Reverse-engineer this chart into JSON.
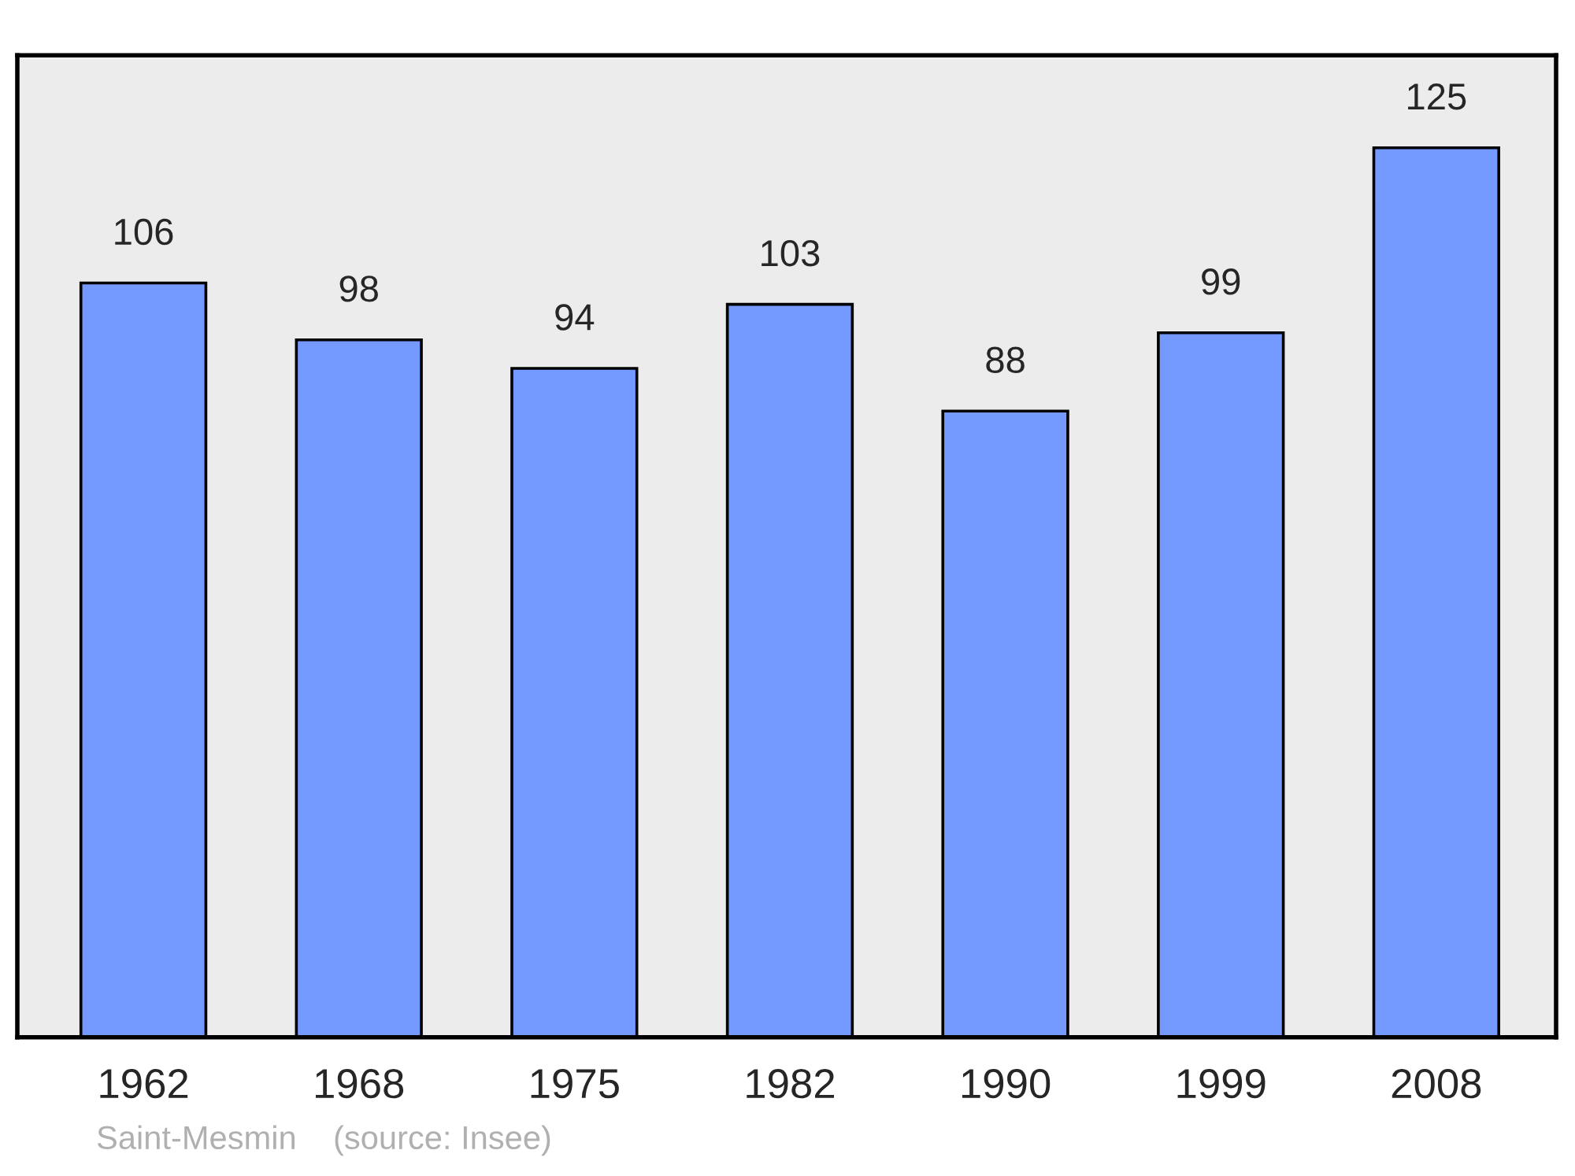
{
  "chart_data": {
    "type": "bar",
    "categories": [
      "1962",
      "1968",
      "1975",
      "1982",
      "1990",
      "1999",
      "2008"
    ],
    "values": [
      106,
      98,
      94,
      103,
      88,
      99,
      125
    ],
    "color": "#7499ff",
    "ylim": [
      0,
      138
    ],
    "data_labels": true,
    "tick_labels": "x",
    "grid": false,
    "legend": false,
    "annotations": [
      "Saint-Mesmin    (source: Insee)"
    ]
  }
}
